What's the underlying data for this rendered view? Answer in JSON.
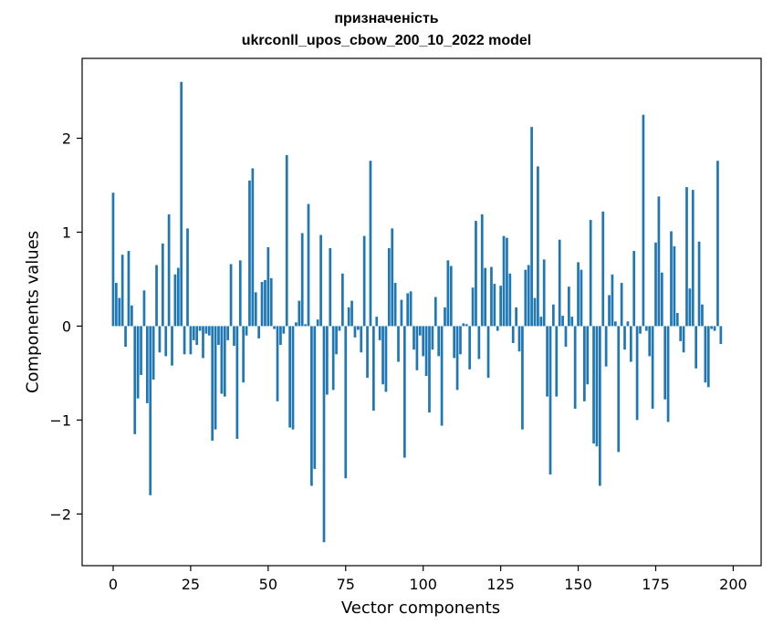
{
  "chart_data": {
    "type": "bar",
    "title_line1": "призначеність",
    "title_line2": "ukrconll_upos_cbow_200_10_2022 model",
    "xlabel": "Vector components",
    "ylabel": "Components values",
    "xlim": [
      -10,
      209
    ],
    "ylim": [
      -2.55,
      2.85
    ],
    "xticks": [
      0,
      25,
      50,
      75,
      100,
      125,
      150,
      175,
      200
    ],
    "xtick_labels": [
      "0",
      "25",
      "50",
      "75",
      "100",
      "125",
      "150",
      "175",
      "200"
    ],
    "yticks": [
      -2,
      -1,
      0,
      1,
      2
    ],
    "ytick_labels": [
      "−2",
      "−1",
      "0",
      "1",
      "2"
    ],
    "bar_color": "#1f77b4",
    "x_start": 0,
    "values": [
      1.42,
      0.46,
      0.3,
      0.76,
      -0.22,
      0.8,
      0.22,
      -1.15,
      -0.77,
      -0.52,
      0.38,
      -0.82,
      -1.8,
      -0.57,
      0.65,
      -0.28,
      0.88,
      -0.32,
      1.19,
      -0.42,
      0.55,
      0.62,
      2.6,
      -0.3,
      1.04,
      -0.3,
      -0.15,
      -0.2,
      -0.05,
      -0.34,
      -0.08,
      -0.1,
      -1.22,
      -1.1,
      -0.2,
      -0.72,
      -0.75,
      -0.15,
      0.66,
      -0.21,
      -1.2,
      0.7,
      -0.6,
      -0.1,
      1.55,
      1.68,
      0.36,
      -0.13,
      0.47,
      0.49,
      0.84,
      0.51,
      -0.03,
      -0.8,
      -0.2,
      -0.08,
      1.82,
      -1.08,
      -1.1,
      0.04,
      0.27,
      0.99,
      0.02,
      1.3,
      -1.7,
      -1.52,
      0.07,
      0.97,
      -2.3,
      -0.73,
      0.83,
      -0.68,
      -0.3,
      -0.05,
      0.56,
      -1.62,
      0.2,
      0.27,
      -0.12,
      -0.04,
      -0.28,
      0.96,
      -0.55,
      1.76,
      -0.9,
      0.1,
      -0.15,
      -0.62,
      -0.7,
      0.83,
      1.04,
      0.46,
      -0.38,
      0.28,
      -1.4,
      0.35,
      0.37,
      -0.25,
      -0.47,
      -0.1,
      -0.32,
      -0.53,
      -0.92,
      -0.25,
      0.31,
      -0.32,
      -1.06,
      0.2,
      0.7,
      0.64,
      -0.34,
      -0.68,
      -0.3,
      0.03,
      0.02,
      -0.46,
      0.41,
      1.12,
      -0.35,
      1.19,
      0.62,
      -0.55,
      0.63,
      0.45,
      -0.05,
      0.43,
      0.96,
      0.94,
      0.56,
      -0.18,
      0.2,
      -0.27,
      -1.1,
      0.6,
      0.65,
      2.12,
      0.3,
      1.7,
      0.1,
      0.71,
      -0.75,
      -1.58,
      0.23,
      -0.75,
      0.92,
      0.11,
      -0.22,
      0.42,
      0.1,
      -0.88,
      0.68,
      0.6,
      -0.8,
      -0.62,
      1.13,
      -1.25,
      -1.28,
      -1.7,
      1.22,
      -0.43,
      0.33,
      0.55,
      0.05,
      -1.34,
      0.46,
      -0.25,
      0.05,
      -0.38,
      0.8,
      -1.0,
      -0.08,
      2.25,
      -0.05,
      -0.32,
      -0.88,
      0.89,
      1.38,
      0.57,
      -0.78,
      -1.02,
      1.01,
      0.85,
      0.14,
      -0.16,
      -0.28,
      1.48,
      0.4,
      1.45,
      -0.45,
      0.9,
      0.23,
      -0.6,
      -0.65,
      -0.03,
      -0.05,
      1.76,
      -0.19
    ]
  }
}
